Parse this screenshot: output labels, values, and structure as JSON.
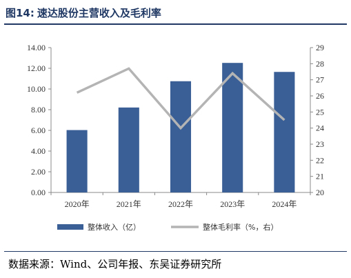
{
  "header": {
    "fig_no": "图14:",
    "title": "速达股份主营收入及毛利率"
  },
  "footer": {
    "source": "数据来源：Wind、公司年报、东吴证券研究所"
  },
  "chart_data": {
    "type": "bar+line",
    "categories": [
      "2020年",
      "2021年",
      "2022年",
      "2023年",
      "2024年"
    ],
    "series": [
      {
        "name": "整体收入（亿）",
        "type": "bar",
        "axis": "left",
        "color": "#3a5f96",
        "values": [
          6.03,
          8.21,
          10.75,
          12.52,
          11.65
        ]
      },
      {
        "name": "整体毛利率（%，右）",
        "type": "line",
        "axis": "right",
        "color": "#b4b4b4",
        "values": [
          26.2,
          27.7,
          24.0,
          27.4,
          24.5
        ]
      }
    ],
    "left_axis": {
      "ylim": [
        0,
        14
      ],
      "ticks": [
        "0.00",
        "2.00",
        "4.00",
        "6.00",
        "8.00",
        "10.00",
        "12.00",
        "14.00"
      ]
    },
    "right_axis": {
      "ylim": [
        20,
        29
      ],
      "ticks": [
        "20",
        "21",
        "22",
        "23",
        "24",
        "25",
        "26",
        "27",
        "28",
        "29"
      ]
    },
    "grid": false,
    "legend_position": "bottom"
  }
}
